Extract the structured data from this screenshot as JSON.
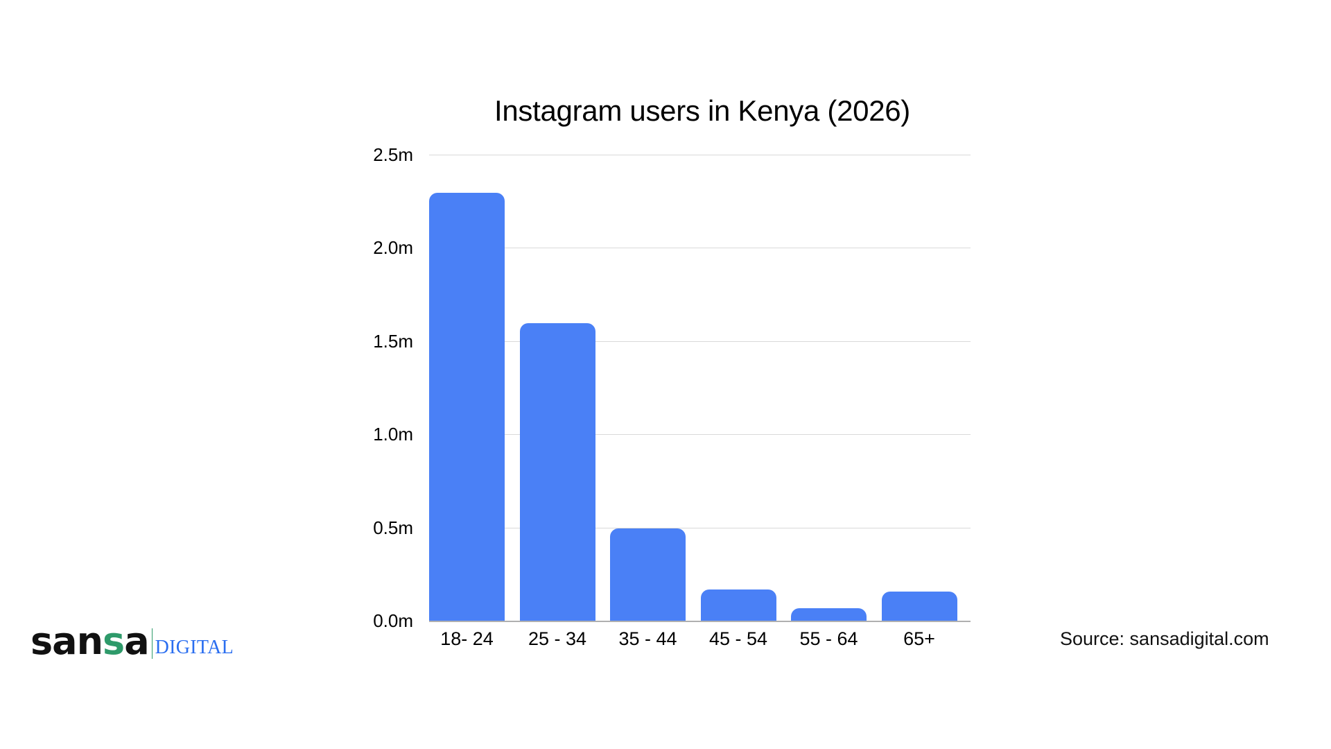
{
  "chart_data": {
    "type": "bar",
    "title": "Instagram users in Kenya (2026)",
    "xlabel": "",
    "ylabel": "",
    "categories": [
      "18- 24",
      "25 - 34",
      "35 - 44",
      "45 - 54",
      "55 - 64",
      "65+"
    ],
    "values": [
      2.3,
      1.6,
      0.5,
      0.17,
      0.07,
      0.16
    ],
    "unit": "m",
    "ylim": [
      0,
      2.5
    ],
    "yticks": [
      0.0,
      0.5,
      1.0,
      1.5,
      2.0,
      2.5
    ],
    "ytick_labels": [
      "0.0m",
      "0.5m",
      "1.0m",
      "1.5m",
      "2.0m",
      "2.5m"
    ],
    "grid": true,
    "legend": null
  },
  "colors": {
    "bar": "#4a80f6",
    "gridline": "#d9d9d9",
    "logo_accent_green": "#2e9a6a",
    "logo_digital_blue": "#2a6ef0"
  },
  "branding": {
    "logo_prefix": "san",
    "logo_accent": "s",
    "logo_suffix": "a",
    "logo_sub": "DIGITAL"
  },
  "footer": {
    "source": "Source: sansadigital.com"
  }
}
